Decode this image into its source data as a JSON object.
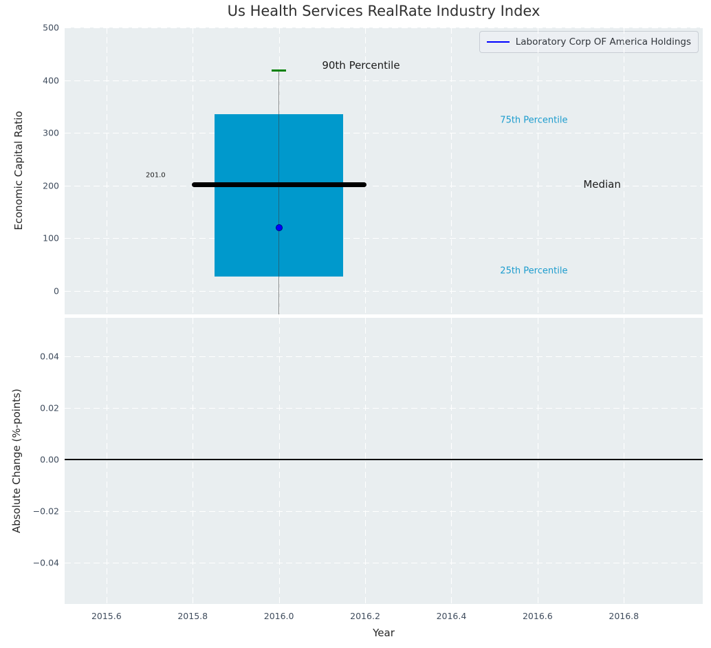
{
  "title": "Us Health Services RealRate Industry Index",
  "legend": {
    "label": "Laboratory Corp OF America Holdings"
  },
  "colors": {
    "box_fill": "#0099cc",
    "median_line": "#000000",
    "whisker_line": "#3c3c3c",
    "percentile_cap": "#008000",
    "company_point": "#0000ff",
    "legend_line": "#0000ff",
    "percentile_label_text": "#1c9cce",
    "axes_background": "#e9eef0",
    "gridline": "#ffffff",
    "tick_label": "#3e4b5c",
    "zero_line": "#000000"
  },
  "xaxis": {
    "label": "Year",
    "xlim": [
      2015.503,
      2016.983
    ],
    "ticks": [
      {
        "v": 2015.6,
        "label": "2015.6"
      },
      {
        "v": 2015.8,
        "label": "2015.8"
      },
      {
        "v": 2016.0,
        "label": "2016.0"
      },
      {
        "v": 2016.2,
        "label": "2016.2"
      },
      {
        "v": 2016.4,
        "label": "2016.4"
      },
      {
        "v": 2016.6,
        "label": "2016.6"
      },
      {
        "v": 2016.8,
        "label": "2016.8"
      }
    ]
  },
  "chart_data": [
    {
      "type": "boxplot",
      "ylabel": "Economic Capital Ratio",
      "ylim": [
        -45,
        500
      ],
      "grid": true,
      "legend_position": "upper right",
      "yticks": [
        {
          "v": 0,
          "label": "0"
        },
        {
          "v": 100,
          "label": "100"
        },
        {
          "v": 200,
          "label": "200"
        },
        {
          "v": 300,
          "label": "300"
        },
        {
          "v": 400,
          "label": "400"
        },
        {
          "v": 500,
          "label": "500"
        }
      ],
      "box": {
        "x": 2016.0,
        "p25": 27,
        "p75": 335,
        "median": 201,
        "p90": 418,
        "whisker_extends_below_axis": true,
        "box_halfwidth_years": 0.149,
        "median_halfwidth_years": 0.2025,
        "cap_halfwidth_years": 0.017
      },
      "company_point": {
        "series": "Laboratory Corp OF America Holdings",
        "x": 2016.0,
        "y": 120
      },
      "annotations": [
        {
          "name": "annotation-90th-percentile",
          "text": "90th Percentile",
          "x": 2016.1,
          "y": 428,
          "anchor": "left",
          "kind": "lg"
        },
        {
          "name": "annotation-median-value",
          "text": "201.0",
          "x": 2015.714,
          "y": 219,
          "anchor": "center",
          "kind": "sm"
        },
        {
          "name": "annotation-75th-percentile",
          "text": "75th Percentile",
          "x": 2016.513,
          "y": 324,
          "anchor": "left",
          "kind": "pct"
        },
        {
          "name": "annotation-median",
          "text": "Median",
          "x": 2016.706,
          "y": 202,
          "anchor": "left",
          "kind": "lg"
        },
        {
          "name": "annotation-25th-percentile",
          "text": "25th Percentile",
          "x": 2016.513,
          "y": 37,
          "anchor": "left",
          "kind": "pct"
        }
      ]
    },
    {
      "type": "line",
      "ylabel": "Absolute Change (%-points)",
      "ylim": [
        -0.056,
        0.055
      ],
      "grid": true,
      "yticks": [
        {
          "v": 0.04,
          "label": "0.04"
        },
        {
          "v": 0.02,
          "label": "0.02"
        },
        {
          "v": 0.0,
          "label": "0.00"
        },
        {
          "v": -0.02,
          "label": "−0.02"
        },
        {
          "v": -0.04,
          "label": "−0.04"
        }
      ],
      "zero_line_y": 0.0
    }
  ]
}
